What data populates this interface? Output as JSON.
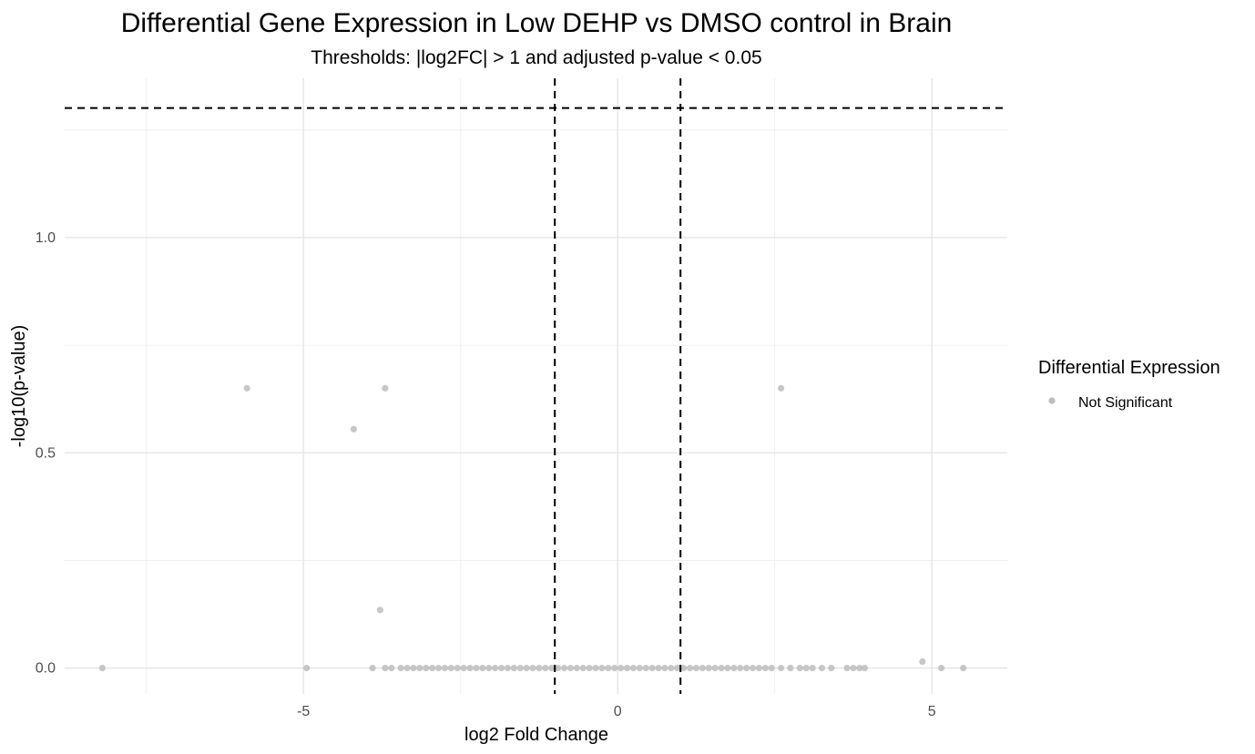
{
  "chart_data": {
    "type": "scatter",
    "title": "Differential Gene Expression in Low DEHP vs DMSO control in Brain",
    "subtitle": "Thresholds: |log2FC| > 1 and adjusted p-value < 0.05",
    "xlabel": "log2 Fold Change",
    "ylabel": "-log10(p-value)",
    "xlim": [
      -8.8,
      6.2
    ],
    "ylim": [
      -0.06,
      1.37
    ],
    "x_ticks": [
      -5,
      0,
      5
    ],
    "x_tick_labels": [
      "-5",
      "0",
      "5"
    ],
    "y_ticks": [
      0.0,
      0.5,
      1.0
    ],
    "y_tick_labels": [
      "0.0",
      "0.5",
      "1.0"
    ],
    "grid": true,
    "reference_lines": {
      "vertical_x": [
        -1,
        1
      ],
      "horizontal_y": [
        1.301
      ]
    },
    "legend": {
      "title": "Differential Expression",
      "position": "right",
      "entries": [
        {
          "label": "Not Significant",
          "color": "#bdbdbd"
        }
      ]
    },
    "series": [
      {
        "name": "Not Significant",
        "color": "#bdbdbd",
        "points": [
          [
            -8.2,
            0.0
          ],
          [
            -5.9,
            0.65
          ],
          [
            -4.2,
            0.555
          ],
          [
            -3.7,
            0.65
          ],
          [
            -3.78,
            0.135
          ],
          [
            -4.95,
            0.0
          ],
          [
            -3.9,
            0.0
          ],
          [
            -3.7,
            0.0
          ],
          [
            -3.6,
            0.0
          ],
          [
            -3.45,
            0.0
          ],
          [
            -3.35,
            0.0
          ],
          [
            -3.25,
            0.0
          ],
          [
            -3.15,
            0.0
          ],
          [
            -3.05,
            0.0
          ],
          [
            -2.95,
            0.0
          ],
          [
            -2.85,
            0.0
          ],
          [
            -2.75,
            0.0
          ],
          [
            -2.65,
            0.0
          ],
          [
            -2.55,
            0.0
          ],
          [
            -2.45,
            0.0
          ],
          [
            -2.35,
            0.0
          ],
          [
            -2.25,
            0.0
          ],
          [
            -2.15,
            0.0
          ],
          [
            -2.05,
            0.0
          ],
          [
            -1.95,
            0.0
          ],
          [
            -1.85,
            0.0
          ],
          [
            -1.75,
            0.0
          ],
          [
            -1.65,
            0.0
          ],
          [
            -1.55,
            0.0
          ],
          [
            -1.45,
            0.0
          ],
          [
            -1.35,
            0.0
          ],
          [
            -1.25,
            0.0
          ],
          [
            -1.15,
            0.0
          ],
          [
            -1.05,
            0.0
          ],
          [
            -0.95,
            0.0
          ],
          [
            -0.85,
            0.0
          ],
          [
            -0.75,
            0.0
          ],
          [
            -0.65,
            0.0
          ],
          [
            -0.55,
            0.0
          ],
          [
            -0.45,
            0.0
          ],
          [
            -0.35,
            0.0
          ],
          [
            -0.25,
            0.0
          ],
          [
            -0.15,
            0.0
          ],
          [
            -0.05,
            0.0
          ],
          [
            0.05,
            0.0
          ],
          [
            0.15,
            0.0
          ],
          [
            0.25,
            0.0
          ],
          [
            0.35,
            0.0
          ],
          [
            0.45,
            0.0
          ],
          [
            0.55,
            0.0
          ],
          [
            0.65,
            0.0
          ],
          [
            0.75,
            0.0
          ],
          [
            0.85,
            0.0
          ],
          [
            0.95,
            0.0
          ],
          [
            1.05,
            0.0
          ],
          [
            1.15,
            0.0
          ],
          [
            1.25,
            0.0
          ],
          [
            1.35,
            0.0
          ],
          [
            1.45,
            0.0
          ],
          [
            1.55,
            0.0
          ],
          [
            1.65,
            0.0
          ],
          [
            1.75,
            0.0
          ],
          [
            1.85,
            0.0
          ],
          [
            1.95,
            0.0
          ],
          [
            2.05,
            0.0
          ],
          [
            2.15,
            0.0
          ],
          [
            2.25,
            0.0
          ],
          [
            2.35,
            0.0
          ],
          [
            2.45,
            0.0
          ],
          [
            2.6,
            0.0
          ],
          [
            2.75,
            0.0
          ],
          [
            2.9,
            0.0
          ],
          [
            3.0,
            0.0
          ],
          [
            3.1,
            0.0
          ],
          [
            3.25,
            0.0
          ],
          [
            3.4,
            0.0
          ],
          [
            3.65,
            0.0
          ],
          [
            3.75,
            0.0
          ],
          [
            3.85,
            0.0
          ],
          [
            3.93,
            0.0
          ],
          [
            2.6,
            0.65
          ],
          [
            4.85,
            0.015
          ],
          [
            5.15,
            0.0
          ],
          [
            5.5,
            0.0
          ]
        ]
      }
    ]
  }
}
